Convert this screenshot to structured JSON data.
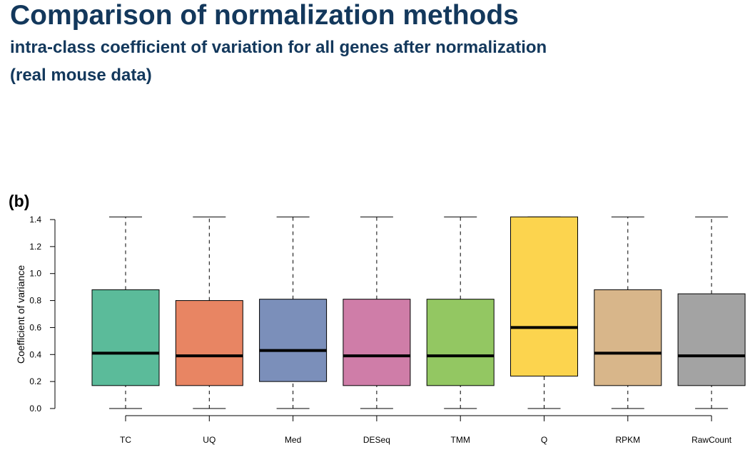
{
  "header": {
    "title": "Comparison of normalization methods",
    "subtitle_line1": "intra-class coefficient of variation for all genes after normalization",
    "subtitle_line2": "(real mouse data)"
  },
  "panel": {
    "label": "(b)"
  },
  "chart_data": {
    "type": "boxplot",
    "title": "",
    "xlabel": "",
    "ylabel": "Coefficient of variance",
    "ylim": [
      0.0,
      1.4
    ],
    "yticks": [
      0.0,
      0.2,
      0.4,
      0.6,
      0.8,
      1.0,
      1.2,
      1.4
    ],
    "ytick_labels": [
      "0.0",
      "0.2",
      "0.4",
      "0.6",
      "0.8",
      "1.0",
      "1.2",
      "1.4"
    ],
    "grid": false,
    "legend": "none",
    "categories": [
      "TC",
      "UQ",
      "Med",
      "DESeq",
      "TMM",
      "Q",
      "RPKM",
      "RawCount"
    ],
    "boxes": [
      {
        "name": "TC",
        "color": "#5bbb9a",
        "whisker_low": 0.0,
        "q1": 0.17,
        "median": 0.41,
        "q3": 0.88,
        "whisker_high": 1.42
      },
      {
        "name": "UQ",
        "color": "#e88563",
        "whisker_low": 0.0,
        "q1": 0.17,
        "median": 0.39,
        "q3": 0.8,
        "whisker_high": 1.42
      },
      {
        "name": "Med",
        "color": "#7b8fba",
        "whisker_low": 0.0,
        "q1": 0.2,
        "median": 0.43,
        "q3": 0.81,
        "whisker_high": 1.42
      },
      {
        "name": "DESeq",
        "color": "#cf7da8",
        "whisker_low": 0.0,
        "q1": 0.17,
        "median": 0.39,
        "q3": 0.81,
        "whisker_high": 1.42
      },
      {
        "name": "TMM",
        "color": "#93c762",
        "whisker_low": 0.0,
        "q1": 0.17,
        "median": 0.39,
        "q3": 0.81,
        "whisker_high": 1.42
      },
      {
        "name": "Q",
        "color": "#fcd44e",
        "whisker_low": 0.0,
        "q1": 0.24,
        "median": 0.6,
        "q3": 1.42,
        "whisker_high": 1.42
      },
      {
        "name": "RPKM",
        "color": "#d8b68a",
        "whisker_low": 0.0,
        "q1": 0.17,
        "median": 0.41,
        "q3": 0.88,
        "whisker_high": 1.42
      },
      {
        "name": "RawCount",
        "color": "#a3a3a3",
        "whisker_low": 0.0,
        "q1": 0.17,
        "median": 0.39,
        "q3": 0.85,
        "whisker_high": 1.42
      }
    ]
  }
}
